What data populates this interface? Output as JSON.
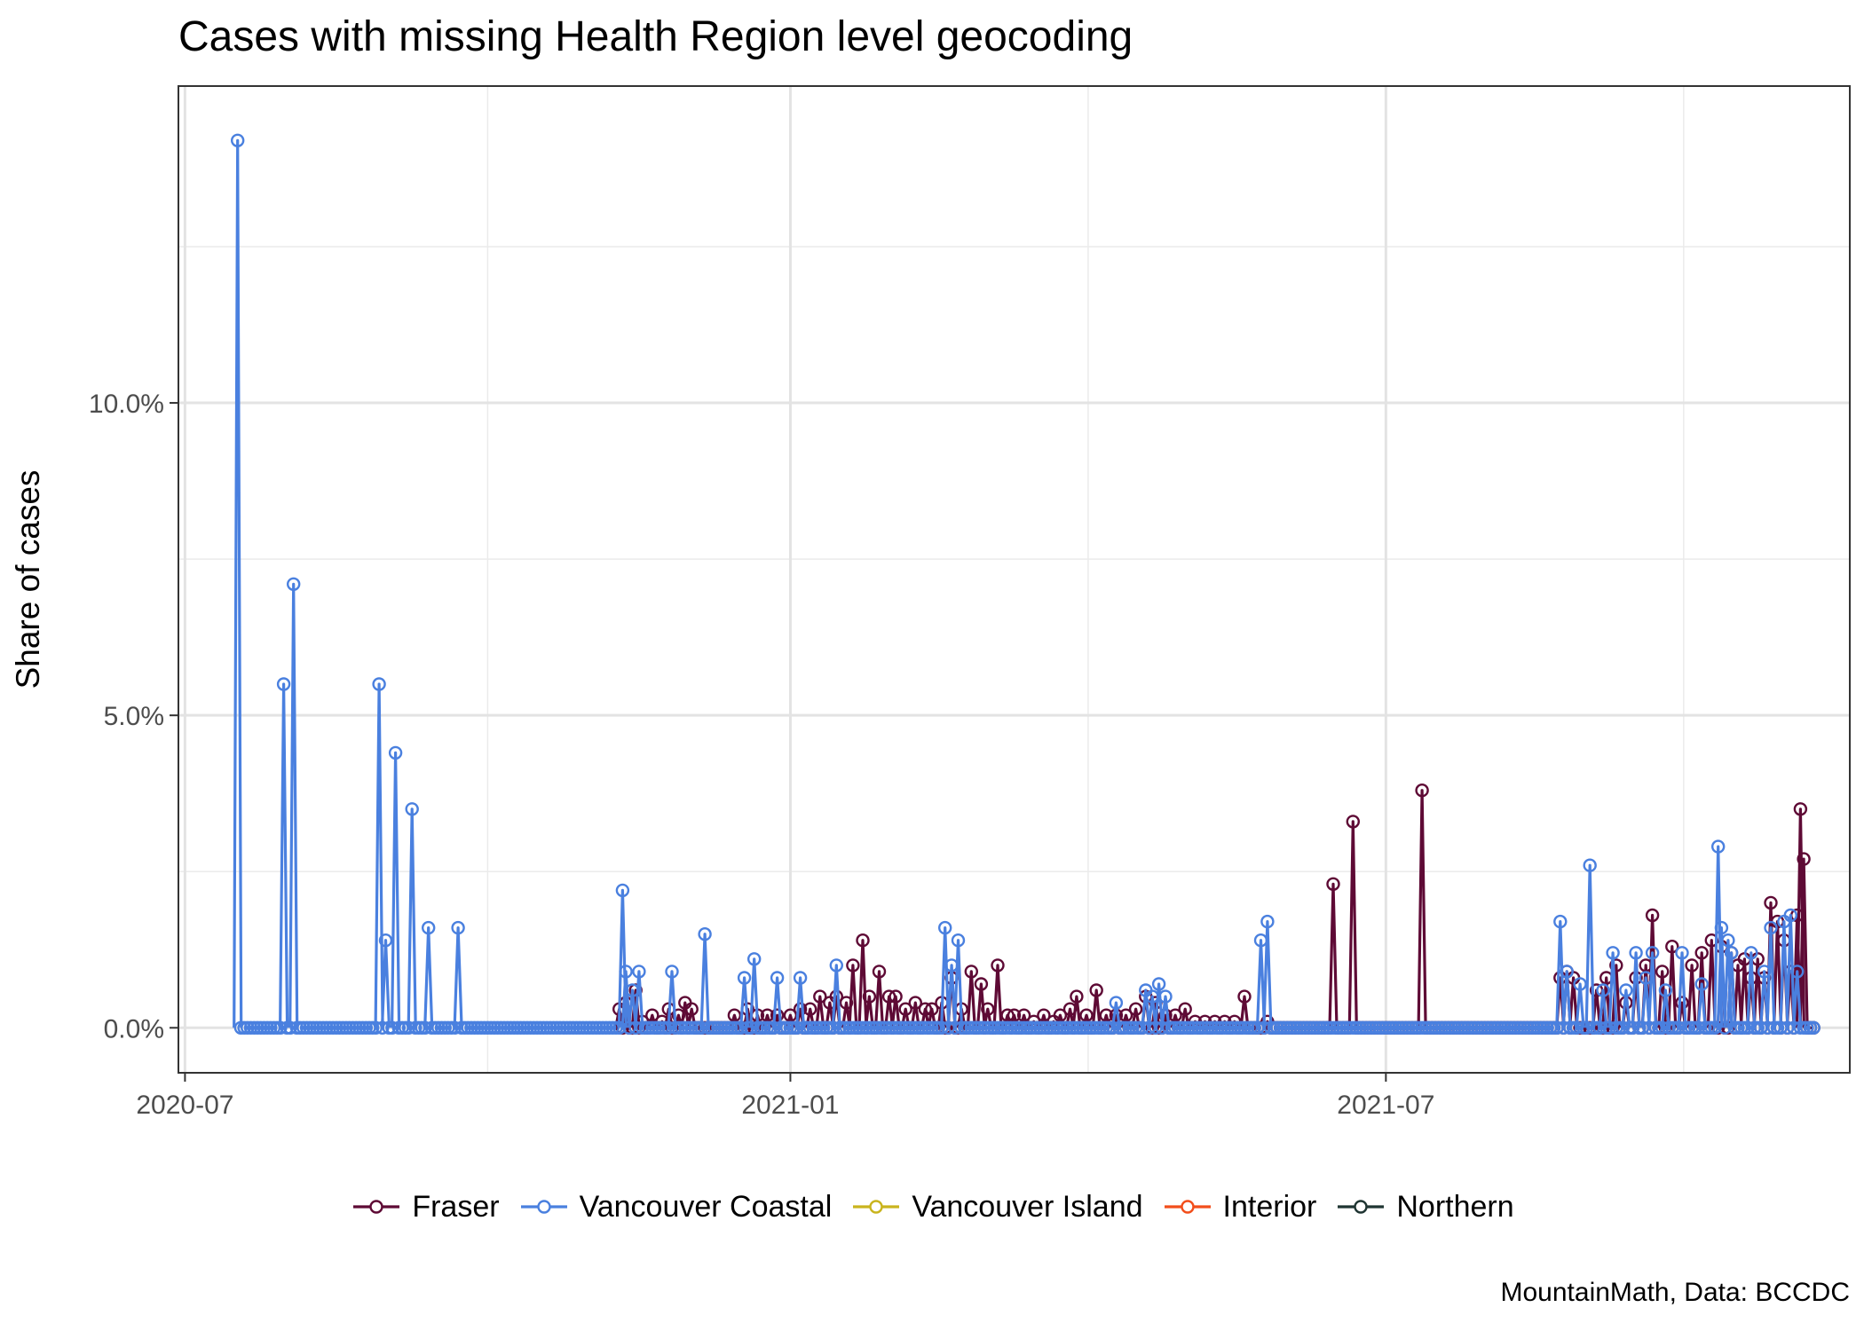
{
  "chart_data": {
    "type": "line",
    "title": "Cases with missing Health Region level geocoding",
    "xlabel": "",
    "ylabel": "Share of cases",
    "caption": "MountainMath, Data: BCCDC",
    "x_axis": {
      "type": "date",
      "range": [
        "2020-06-29",
        "2021-11-19"
      ],
      "ticks": [
        "2020-07-01",
        "2021-01-01",
        "2021-07-01"
      ],
      "tick_labels": [
        "2020-07",
        "2021-01",
        "2021-07"
      ]
    },
    "y_axis": {
      "range": [
        -0.0072,
        0.1507
      ],
      "ticks": [
        0,
        0.05,
        0.1
      ],
      "tick_labels": [
        "0.0%",
        "5.0%",
        "10.0%"
      ],
      "format": "percent"
    },
    "grid": true,
    "legend_position": "bottom",
    "baseline": {
      "x_start": "2020-07-17",
      "x_end": "2021-11-08",
      "y": 0
    },
    "series": [
      {
        "name": "Fraser",
        "color": "#5E0A35",
        "x": [
          "2020-11-10",
          "2020-11-12",
          "2020-11-15",
          "2020-11-17",
          "2020-11-20",
          "2020-11-23",
          "2020-11-25",
          "2020-11-28",
          "2020-11-30",
          "2020-12-02",
          "2020-12-15",
          "2020-12-19",
          "2020-12-22",
          "2020-12-25",
          "2020-12-28",
          "2021-01-01",
          "2021-01-04",
          "2021-01-07",
          "2021-01-10",
          "2021-01-13",
          "2021-01-15",
          "2021-01-18",
          "2021-01-20",
          "2021-01-23",
          "2021-01-25",
          "2021-01-28",
          "2021-01-31",
          "2021-02-02",
          "2021-02-05",
          "2021-02-08",
          "2021-02-11",
          "2021-02-13",
          "2021-02-16",
          "2021-02-19",
          "2021-02-22",
          "2021-02-25",
          "2021-02-28",
          "2021-03-02",
          "2021-03-05",
          "2021-03-08",
          "2021-03-10",
          "2021-03-13",
          "2021-03-16",
          "2021-03-19",
          "2021-03-22",
          "2021-03-24",
          "2021-03-27",
          "2021-03-29",
          "2021-04-01",
          "2021-04-04",
          "2021-04-07",
          "2021-04-10",
          "2021-04-13",
          "2021-04-16",
          "2021-04-19",
          "2021-04-22",
          "2021-04-25",
          "2021-04-28",
          "2021-05-01",
          "2021-05-04",
          "2021-05-07",
          "2021-05-10",
          "2021-05-13",
          "2021-05-16",
          "2021-05-19",
          "2021-05-26",
          "2021-06-15",
          "2021-06-21",
          "2021-07-12",
          "2021-08-23",
          "2021-08-25",
          "2021-08-27",
          "2021-09-03",
          "2021-09-06",
          "2021-09-09",
          "2021-09-12",
          "2021-09-15",
          "2021-09-18",
          "2021-09-20",
          "2021-09-23",
          "2021-09-26",
          "2021-09-29",
          "2021-10-02",
          "2021-10-05",
          "2021-10-08",
          "2021-10-11",
          "2021-10-14",
          "2021-10-16",
          "2021-10-18",
          "2021-10-20",
          "2021-10-22",
          "2021-10-24",
          "2021-10-26",
          "2021-10-28",
          "2021-10-30",
          "2021-11-01",
          "2021-11-03",
          "2021-11-04",
          "2021-11-05",
          "2021-11-06",
          "2021-11-07"
        ],
        "y": [
          0.003,
          0.004,
          0.006,
          0.001,
          0.002,
          0.001,
          0.003,
          0.002,
          0.004,
          0.003,
          0.002,
          0.003,
          0.002,
          0.002,
          0.002,
          0.002,
          0.003,
          0.003,
          0.005,
          0.004,
          0.005,
          0.004,
          0.01,
          0.014,
          0.005,
          0.009,
          0.005,
          0.005,
          0.003,
          0.004,
          0.003,
          0.003,
          0.004,
          0.008,
          0.003,
          0.009,
          0.007,
          0.003,
          0.01,
          0.002,
          0.002,
          0.002,
          0.001,
          0.002,
          0.001,
          0.002,
          0.003,
          0.005,
          0.002,
          0.006,
          0.002,
          0.002,
          0.002,
          0.003,
          0.005,
          0.004,
          0.002,
          0.002,
          0.003,
          0.001,
          0.001,
          0.001,
          0.001,
          0.001,
          0.005,
          0.001,
          0.023,
          0.033,
          0.038,
          0.008,
          0.009,
          0.008,
          0.006,
          0.008,
          0.01,
          0.004,
          0.008,
          0.01,
          0.018,
          0.009,
          0.013,
          0.004,
          0.01,
          0.012,
          0.014,
          0.013,
          0.012,
          0.01,
          0.011,
          0.008,
          0.011,
          0.008,
          0.02,
          0.017,
          0.014,
          0.009,
          0.018,
          0.035,
          0.027,
          0.0,
          0.0
        ]
      },
      {
        "name": "Vancouver Coastal",
        "color": "#4A80DF",
        "x": [
          "2020-07-17",
          "2020-07-31",
          "2020-08-03",
          "2020-08-29",
          "2020-08-31",
          "2020-09-03",
          "2020-09-08",
          "2020-09-13",
          "2020-09-22",
          "2020-11-11",
          "2020-11-12",
          "2020-11-14",
          "2020-11-16",
          "2020-11-26",
          "2020-12-06",
          "2020-12-18",
          "2020-12-21",
          "2020-12-28",
          "2021-01-04",
          "2021-01-15",
          "2021-02-17",
          "2021-02-19",
          "2021-02-21",
          "2021-04-10",
          "2021-04-19",
          "2021-04-21",
          "2021-04-23",
          "2021-04-25",
          "2021-05-24",
          "2021-05-26",
          "2021-08-23",
          "2021-08-25",
          "2021-08-29",
          "2021-09-01",
          "2021-09-05",
          "2021-09-08",
          "2021-09-12",
          "2021-09-15",
          "2021-09-18",
          "2021-09-20",
          "2021-09-24",
          "2021-09-29",
          "2021-10-05",
          "2021-10-10",
          "2021-10-11",
          "2021-10-13",
          "2021-10-14",
          "2021-10-20",
          "2021-10-24",
          "2021-10-26",
          "2021-10-30",
          "2021-11-01",
          "2021-11-03"
        ],
        "y": [
          0.142,
          0.055,
          0.071,
          0.055,
          0.014,
          0.044,
          0.035,
          0.016,
          0.016,
          0.022,
          0.009,
          0.006,
          0.009,
          0.009,
          0.015,
          0.008,
          0.011,
          0.008,
          0.008,
          0.01,
          0.016,
          0.01,
          0.014,
          0.004,
          0.006,
          0.005,
          0.007,
          0.005,
          0.014,
          0.017,
          0.017,
          0.009,
          0.007,
          0.026,
          0.006,
          0.012,
          0.006,
          0.012,
          0.008,
          0.012,
          0.006,
          0.012,
          0.007,
          0.029,
          0.016,
          0.014,
          0.012,
          0.012,
          0.009,
          0.016,
          0.017,
          0.018,
          0.009
        ]
      },
      {
        "name": "Vancouver Island",
        "color": "#C9B41E",
        "x": [],
        "y": []
      },
      {
        "name": "Interior",
        "color": "#F24E1B",
        "x": [],
        "y": []
      },
      {
        "name": "Northern",
        "color": "#1F3532",
        "x": [],
        "y": []
      }
    ]
  }
}
